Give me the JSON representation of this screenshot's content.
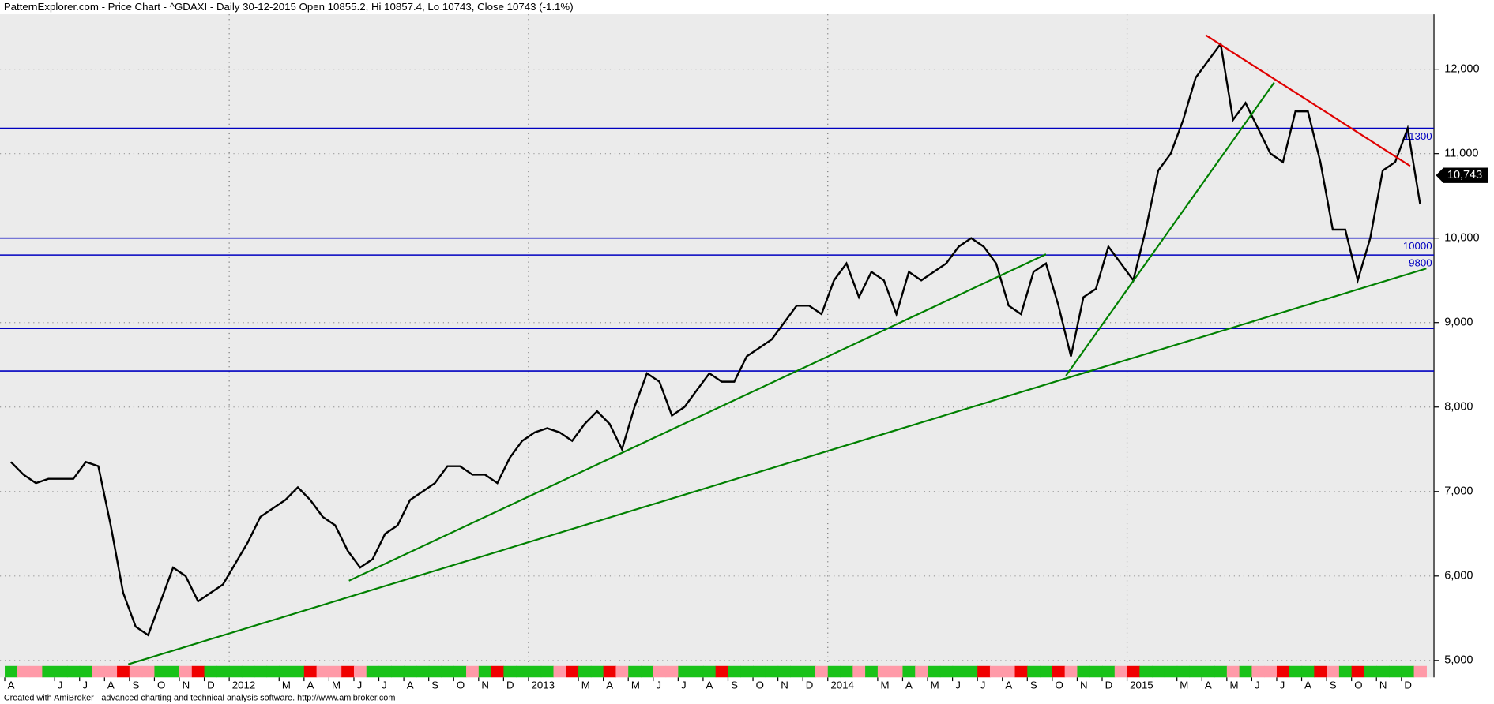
{
  "chart_data": {
    "type": "line",
    "title": "PatternExplorer.com - Price Chart - ^GDAXI - Daily 30-12-2015 Open 10855.2, Hi 10857.4, Lo 10743, Close 10743 (-1.1%)",
    "footer": "Created with AmiBroker - advanced charting and technical analysis software. http://www.amibroker.com",
    "categories": [
      "A",
      null,
      null,
      null,
      "J",
      null,
      "J",
      null,
      "A",
      null,
      "S",
      null,
      "O",
      null,
      "N",
      null,
      "D",
      null,
      "2012",
      null,
      null,
      null,
      "M",
      null,
      "A",
      null,
      "M",
      null,
      "J",
      null,
      "J",
      null,
      "A",
      null,
      "S",
      null,
      "O",
      null,
      "N",
      null,
      "D",
      null,
      "2013",
      null,
      null,
      null,
      "M",
      null,
      "A",
      null,
      "M",
      null,
      "J",
      null,
      "J",
      null,
      "A",
      null,
      "S",
      null,
      "O",
      null,
      "N",
      null,
      "D",
      null,
      "2014",
      null,
      null,
      null,
      "M",
      null,
      "A",
      null,
      "M",
      null,
      "J",
      null,
      "J",
      null,
      "A",
      null,
      "S",
      null,
      "O",
      null,
      "N",
      null,
      "D",
      null,
      "2015",
      null,
      null,
      null,
      "M",
      null,
      "A",
      null,
      "M",
      null,
      "J",
      null,
      "J",
      null,
      "A",
      null,
      "S",
      null,
      "O",
      null,
      "N",
      null,
      "D",
      null
    ],
    "series": [
      {
        "name": "^GDAXI",
        "color": "#000000",
        "values": [
          7350,
          7200,
          7100,
          7150,
          7150,
          7150,
          7350,
          7300,
          6600,
          5800,
          5400,
          5300,
          5700,
          6100,
          6000,
          5700,
          5800,
          5900,
          6150,
          6400,
          6700,
          6800,
          6900,
          7050,
          6900,
          6700,
          6600,
          6300,
          6100,
          6200,
          6500,
          6600,
          6900,
          7000,
          7100,
          7300,
          7300,
          7200,
          7200,
          7100,
          7400,
          7600,
          7700,
          7750,
          7700,
          7600,
          7800,
          7950,
          7800,
          7500,
          8000,
          8400,
          8300,
          7900,
          8000,
          8200,
          8400,
          8300,
          8300,
          8600,
          8700,
          8800,
          9000,
          9200,
          9200,
          9100,
          9500,
          9700,
          9300,
          9600,
          9500,
          9100,
          9600,
          9500,
          9600,
          9700,
          9900,
          10000,
          9900,
          9700,
          9200,
          9100,
          9600,
          9700,
          9200,
          8600,
          9300,
          9400,
          9900,
          9700,
          9500,
          10100,
          10800,
          11000,
          11400,
          11900,
          12100,
          12300,
          11400,
          11600,
          11300,
          11000,
          10900,
          11500,
          11500,
          10900,
          10100,
          10100,
          9500,
          10000,
          10800,
          10900,
          11300,
          10400
        ]
      }
    ],
    "last_close": {
      "value": 10743,
      "label": "10,743"
    },
    "levels": [
      {
        "value": 11300,
        "label": "11300",
        "color": "#0000c0"
      },
      {
        "value": 10000,
        "label": "10000",
        "color": "#0000c0"
      },
      {
        "value": 9800,
        "label": "9800",
        "color": "#0000c0"
      },
      {
        "value": 8930,
        "color": "#0000c0"
      },
      {
        "value": 8427,
        "color": "#0000c0"
      }
    ],
    "trendlines": [
      {
        "color": "#008000",
        "x": [
          27.1,
          83.0
        ],
        "y": [
          5944,
          9809
        ]
      },
      {
        "color": "#008000",
        "x": [
          9.4,
          113.5
        ],
        "y": [
          4955,
          9640
        ]
      },
      {
        "color": "#008000",
        "x": [
          84.6,
          101.3
        ],
        "y": [
          8371,
          11843
        ]
      },
      {
        "color": "#e00000",
        "x": [
          95.8,
          112.2
        ],
        "y": [
          12404,
          10854
        ]
      }
    ],
    "ylim": [
      4800,
      12650
    ],
    "yticks": [
      {
        "value": 5000,
        "label": "5,000"
      },
      {
        "value": 6000,
        "label": "6,000"
      },
      {
        "value": 7000,
        "label": "7,000"
      },
      {
        "value": 8000,
        "label": "8,000"
      },
      {
        "value": 9000,
        "label": "9,000"
      },
      {
        "value": 10000,
        "label": "10,000"
      },
      {
        "value": 11000,
        "label": "11,000"
      },
      {
        "value": 12000,
        "label": "12,000"
      }
    ],
    "grid": true
  }
}
